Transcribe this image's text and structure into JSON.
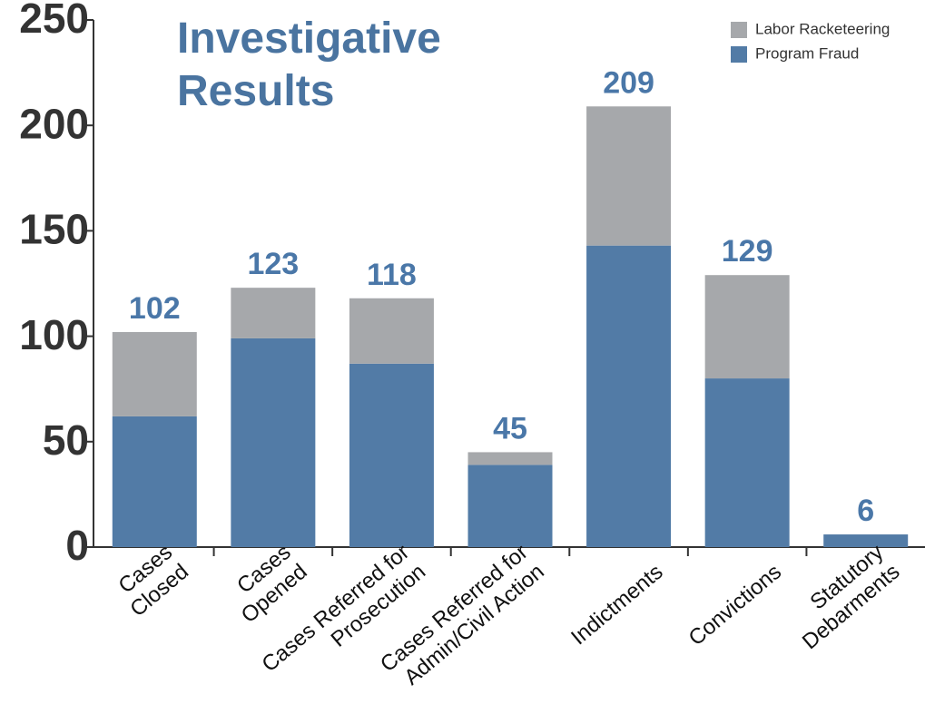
{
  "chart_data": {
    "type": "stacked_bar",
    "title": "Investigative\nResults",
    "categories": [
      "Cases\nClosed",
      "Cases\nOpened",
      "Cases Referred for\nProsecution",
      "Cases  Referred for\nAdmin/Civil Action",
      "Indictments",
      "Convictions",
      "Statutory\nDebarments"
    ],
    "series": [
      {
        "name": "Program Fraud",
        "color": "#527ba6",
        "values": [
          62,
          99,
          87,
          39,
          143,
          80,
          6
        ]
      },
      {
        "name": "Labor Racketeering",
        "color": "#a6a8ab",
        "values": [
          40,
          24,
          31,
          6,
          66,
          49,
          0
        ]
      }
    ],
    "totals": [
      102,
      123,
      118,
      45,
      209,
      129,
      6
    ],
    "ylim": [
      0,
      250
    ],
    "yticks": [
      0,
      50,
      100,
      150,
      200,
      250
    ],
    "grid": false,
    "legend": "upper right"
  }
}
